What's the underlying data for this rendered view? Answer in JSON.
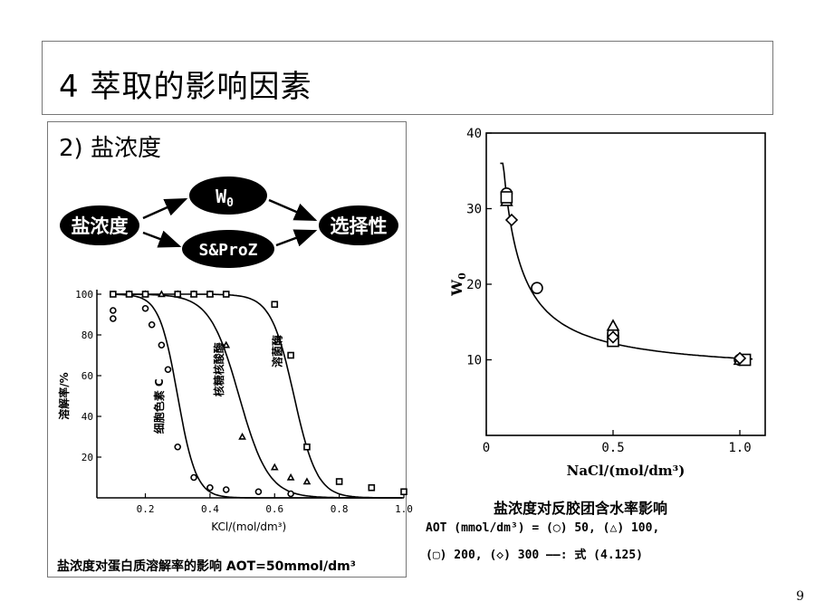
{
  "slide": {
    "title": "4  萃取的影响因素",
    "subtitle": "2) 盐浓度",
    "page_number": "9"
  },
  "flow": {
    "source": "盐浓度",
    "top": "W",
    "top_sub": "0",
    "bottom": "S&ProZ",
    "target": "选择性"
  },
  "left_chart": {
    "caption": "盐浓度对蛋白质溶解率的影响 AOT=50mmol/dm³",
    "ylabel": "溶解率/%",
    "xlabel": "KCl/(mol/dm³)",
    "x_ticks": [
      "0.2",
      "0.4",
      "0.6",
      "0.8",
      "1.0"
    ],
    "y_ticks": [
      "20",
      "40",
      "60",
      "80",
      "100"
    ],
    "curve_labels": [
      "细胞色素 C",
      "核糖核酸酶",
      "溶菌酶"
    ]
  },
  "right_chart": {
    "caption": "盐浓度对反胶团含水率影响",
    "legend_line1": "AOT (mmol/dm³) = (◯) 50, (△) 100,",
    "legend_line2": "(▢) 200, (◇) 300   ——: 式 (4.125)",
    "ylabel": "W",
    "ylabel_sub": "0",
    "xlabel": "NaCl/(mol/dm³)",
    "x_ticks": [
      "0",
      "0.5",
      "1.0"
    ],
    "y_ticks": [
      "10",
      "20",
      "30",
      "40"
    ]
  },
  "chart_data": [
    {
      "type": "scatter",
      "xlabel": "KCl/(mol/dm³)",
      "ylabel": "溶解率/%",
      "xlim": [
        0.05,
        1.0
      ],
      "ylim": [
        0,
        100
      ],
      "series": [
        {
          "name": "细胞色素 C",
          "marker": "circle",
          "x": [
            0.1,
            0.1,
            0.2,
            0.22,
            0.25,
            0.27,
            0.3,
            0.35,
            0.4,
            0.45,
            0.55,
            0.65
          ],
          "y": [
            92,
            88,
            93,
            85,
            75,
            63,
            25,
            10,
            5,
            4,
            3,
            2
          ]
        },
        {
          "name": "核糖核酸酶",
          "marker": "triangle",
          "x": [
            0.15,
            0.2,
            0.25,
            0.3,
            0.35,
            0.4,
            0.45,
            0.5,
            0.6,
            0.65,
            0.7
          ],
          "y": [
            100,
            100,
            100,
            100,
            100,
            100,
            75,
            30,
            15,
            10,
            8
          ]
        },
        {
          "name": "溶菌酶",
          "marker": "square",
          "x": [
            0.1,
            0.15,
            0.2,
            0.3,
            0.35,
            0.4,
            0.45,
            0.6,
            0.65,
            0.7,
            0.8,
            0.9,
            1.0
          ],
          "y": [
            100,
            100,
            100,
            100,
            100,
            100,
            100,
            95,
            70,
            25,
            8,
            5,
            3
          ]
        }
      ]
    },
    {
      "type": "scatter",
      "xlabel": "NaCl/(mol/dm³)",
      "ylabel": "W0",
      "xlim": [
        0,
        1.1
      ],
      "ylim": [
        0,
        40
      ],
      "series": [
        {
          "name": "50",
          "marker": "circle",
          "x": [
            0.08,
            0.2,
            0.5,
            1.0
          ],
          "y": [
            32,
            19.5,
            13.5,
            10
          ]
        },
        {
          "name": "100",
          "marker": "triangle",
          "x": [
            0.08,
            0.5,
            1.0
          ],
          "y": [
            31,
            14.5,
            10
          ]
        },
        {
          "name": "200",
          "marker": "square",
          "x": [
            0.08,
            0.5,
            1.02
          ],
          "y": [
            31.5,
            12.5,
            10
          ]
        },
        {
          "name": "300",
          "marker": "diamond",
          "x": [
            0.1,
            0.5,
            1.0
          ],
          "y": [
            28.5,
            13,
            10.2
          ]
        }
      ]
    }
  ]
}
